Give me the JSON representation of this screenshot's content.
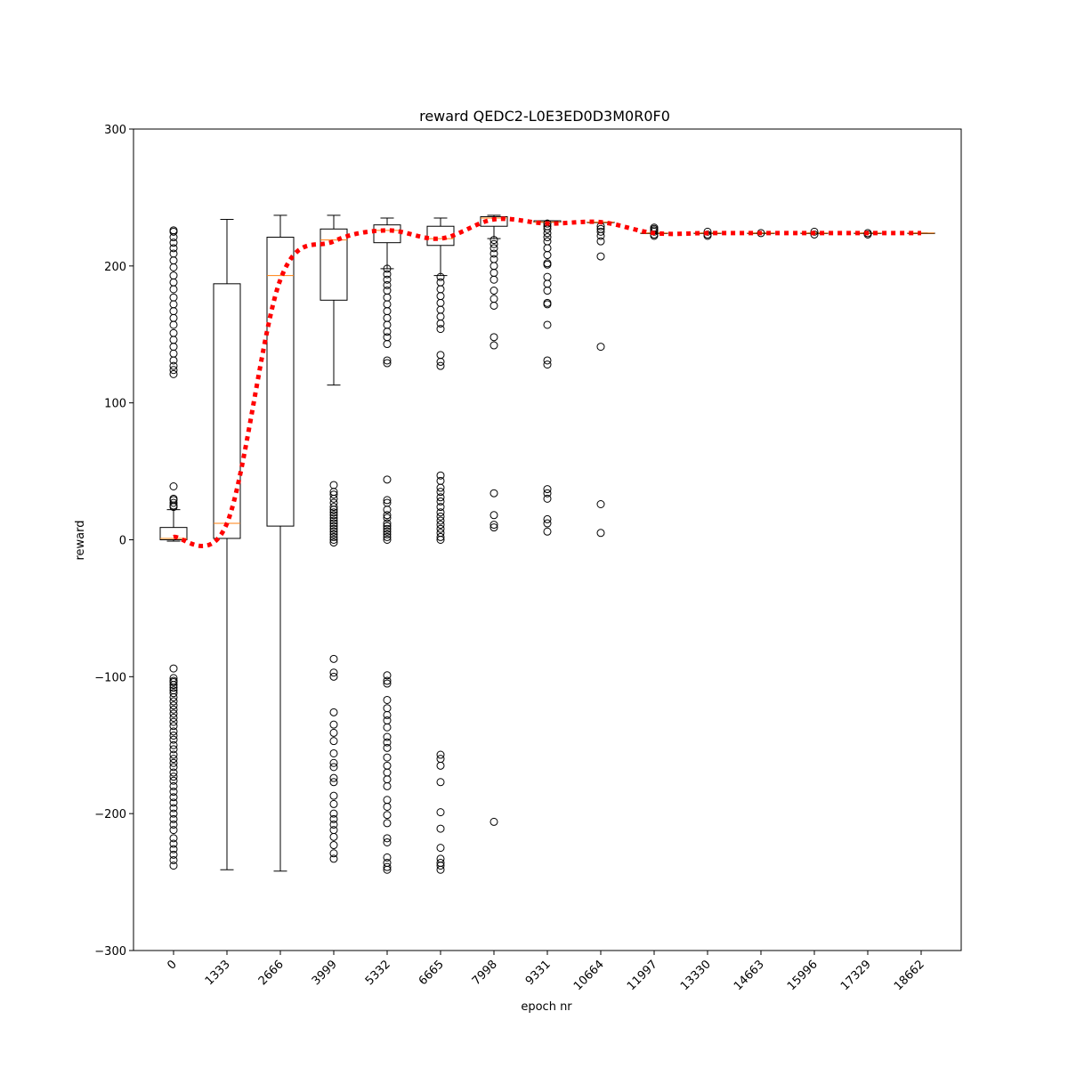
{
  "chart_data": {
    "type": "box",
    "title": "reward QEDC2-L0E3ED0D3M0R0F0",
    "xlabel": "epoch nr",
    "ylabel": "reward",
    "ylim": [
      -300,
      300
    ],
    "yticks": [
      -300,
      -200,
      -100,
      0,
      100,
      200,
      300
    ],
    "categories": [
      "0",
      "1333",
      "2666",
      "3999",
      "5332",
      "6665",
      "7998",
      "9331",
      "10664",
      "11997",
      "13330",
      "14663",
      "15996",
      "17329",
      "18662"
    ],
    "boxes": [
      {
        "whisker_low": -1,
        "q1": 0,
        "median": 1,
        "q3": 9,
        "whisker_high": 22,
        "outliers": [
          -94,
          -101,
          -103,
          -104,
          -106,
          -108,
          -110,
          -112,
          -115,
          -118,
          -121,
          -124,
          -127,
          -130,
          -133,
          -136,
          -140,
          -143,
          -146,
          -150,
          -153,
          -157,
          -160,
          -163,
          -166,
          -170,
          -173,
          -176,
          -180,
          -184,
          -188,
          -192,
          -196,
          -200,
          -204,
          -208,
          -212,
          -218,
          -222,
          -226,
          -230,
          -234,
          -238,
          24,
          25,
          27,
          29,
          30,
          39,
          121,
          124,
          127,
          131,
          136,
          141,
          146,
          151,
          157,
          162,
          167,
          172,
          177,
          183,
          188,
          193,
          199,
          204,
          209,
          213,
          217,
          221,
          225,
          226
        ]
      },
      {
        "whisker_low": -241,
        "q1": 1,
        "median": 12,
        "q3": 187,
        "whisker_high": 234,
        "outliers": []
      },
      {
        "whisker_low": -242,
        "q1": 10,
        "median": 193,
        "q3": 221,
        "whisker_high": 237,
        "outliers": []
      },
      {
        "whisker_low": 113,
        "q1": 175,
        "median": 219,
        "q3": 227,
        "whisker_high": 237,
        "outliers": [
          -87,
          -97,
          -100,
          -126,
          -135,
          -141,
          -147,
          -156,
          -163,
          -166,
          -174,
          -177,
          -187,
          -193,
          -200,
          -204,
          -208,
          -212,
          -217,
          -223,
          -229,
          -233,
          -2,
          0,
          2,
          4,
          6,
          8,
          10,
          12,
          14,
          16,
          18,
          20,
          22,
          24,
          27,
          30,
          33,
          35,
          40
        ]
      },
      {
        "whisker_low": 198,
        "q1": 217,
        "median": 226,
        "q3": 230,
        "whisker_high": 235,
        "outliers": [
          -99,
          -103,
          -105,
          -117,
          -123,
          -128,
          -132,
          -137,
          -144,
          -148,
          -152,
          -159,
          -165,
          -170,
          -175,
          -180,
          -190,
          -195,
          -201,
          -207,
          -218,
          -221,
          -232,
          -236,
          -239,
          -241,
          0,
          2,
          4,
          6,
          8,
          10,
          12,
          16,
          18,
          22,
          27,
          29,
          44,
          129,
          131,
          143,
          148,
          152,
          157,
          162,
          167,
          172,
          177,
          182,
          186,
          190,
          194,
          198
        ]
      },
      {
        "whisker_low": 193,
        "q1": 215,
        "median": 220,
        "q3": 229,
        "whisker_high": 235,
        "outliers": [
          -157,
          -160,
          -165,
          -177,
          -199,
          -211,
          -225,
          -233,
          -236,
          -238,
          -241,
          0,
          2,
          5,
          8,
          11,
          14,
          17,
          20,
          24,
          28,
          31,
          35,
          38,
          43,
          47,
          127,
          130,
          135,
          154,
          158,
          163,
          168,
          173,
          178,
          183,
          188,
          192
        ]
      },
      {
        "whisker_low": 220,
        "q1": 229,
        "median": 235,
        "q3": 236,
        "whisker_high": 237,
        "outliers": [
          -206,
          9,
          11,
          18,
          34,
          142,
          148,
          171,
          176,
          182,
          190,
          195,
          200,
          205,
          209,
          213,
          216,
          219
        ]
      },
      {
        "whisker_low": 232,
        "q1": 232,
        "median": 232,
        "q3": 233,
        "whisker_high": 233,
        "outliers": [
          6,
          12,
          15,
          30,
          34,
          37,
          128,
          131,
          157,
          172,
          173,
          182,
          187,
          192,
          201,
          202,
          208,
          213,
          218,
          221,
          224,
          227,
          229,
          231
        ]
      },
      {
        "whisker_low": 232,
        "q1": 232,
        "median": 232,
        "q3": 232,
        "whisker_high": 232,
        "outliers": [
          5,
          26,
          141,
          207,
          218,
          222,
          225,
          227,
          229
        ]
      },
      {
        "whisker_low": 224,
        "q1": 224,
        "median": 224,
        "q3": 224,
        "whisker_high": 224,
        "outliers": [
          222,
          223,
          225,
          226,
          227,
          228
        ]
      },
      {
        "whisker_low": 224,
        "q1": 224,
        "median": 224,
        "q3": 224,
        "whisker_high": 224,
        "outliers": [
          222,
          223,
          225
        ]
      },
      {
        "whisker_low": 224,
        "q1": 224,
        "median": 224,
        "q3": 224,
        "whisker_high": 224,
        "outliers": [
          224
        ]
      },
      {
        "whisker_low": 224,
        "q1": 224,
        "median": 224,
        "q3": 224,
        "whisker_high": 224,
        "outliers": [
          223,
          225
        ]
      },
      {
        "whisker_low": 224,
        "q1": 224,
        "median": 224,
        "q3": 224,
        "whisker_high": 224,
        "outliers": [
          223,
          224
        ]
      },
      {
        "whisker_low": 224,
        "q1": 224,
        "median": 224,
        "q3": 224,
        "whisker_high": 224,
        "outliers": []
      }
    ],
    "mean_line": {
      "style": "dotted",
      "color": "#ff0000",
      "values": [
        2,
        12,
        190,
        218,
        226,
        220,
        234,
        231,
        232,
        224,
        224,
        224,
        224,
        224,
        224
      ]
    },
    "grid": false,
    "colors": {
      "box": "#000000",
      "median": "#ff7f0e",
      "mean_line": "#ff0000"
    }
  }
}
